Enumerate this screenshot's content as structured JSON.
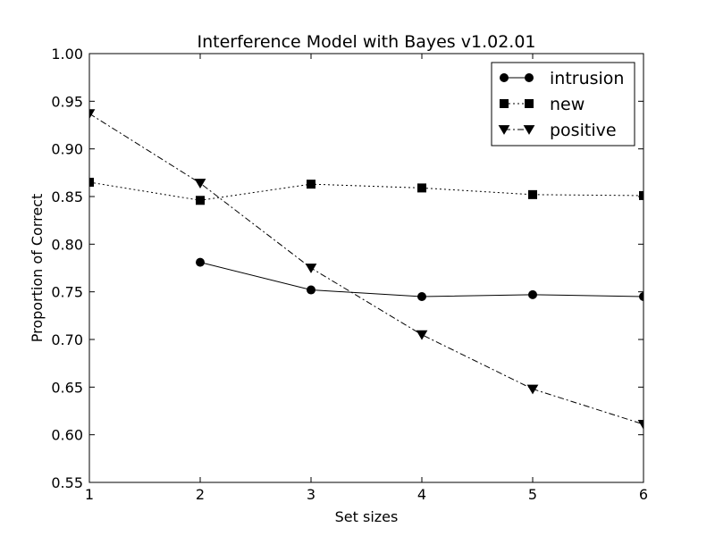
{
  "chart_data": {
    "type": "line",
    "title": "Interference Model with Bayes v1.02.01",
    "xlabel": "Set sizes",
    "ylabel": "Proportion of Correct",
    "xlim": [
      1,
      6
    ],
    "ylim": [
      0.55,
      1.0
    ],
    "xticks": [
      "1",
      "2",
      "3",
      "4",
      "5",
      "6"
    ],
    "yticks": [
      "0.55",
      "0.60",
      "0.65",
      "0.70",
      "0.75",
      "0.80",
      "0.85",
      "0.90",
      "0.95",
      "1.00"
    ],
    "grid": false,
    "legend_position": "top-right",
    "series": [
      {
        "name": "intrusion",
        "marker": "circle",
        "line_style": "solid",
        "color": "#000000",
        "x": [
          2,
          3,
          4,
          5,
          6
        ],
        "values": [
          0.781,
          0.752,
          0.745,
          0.747,
          0.745
        ]
      },
      {
        "name": "new",
        "marker": "square",
        "line_style": "dotted",
        "color": "#000000",
        "x": [
          1,
          2,
          3,
          4,
          5,
          6
        ],
        "values": [
          0.865,
          0.846,
          0.863,
          0.859,
          0.852,
          0.851
        ]
      },
      {
        "name": "positive",
        "marker": "triangle-down",
        "line_style": "dash-dot",
        "color": "#000000",
        "x": [
          1,
          2,
          3,
          4,
          5,
          6
        ],
        "values": [
          0.937,
          0.864,
          0.775,
          0.705,
          0.648,
          0.611
        ]
      }
    ]
  }
}
